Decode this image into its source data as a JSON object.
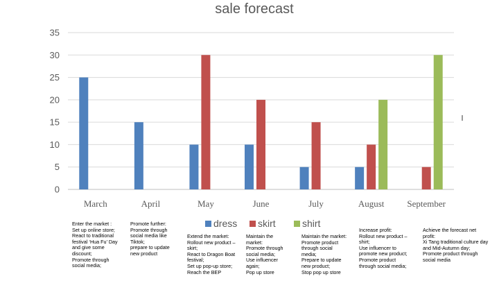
{
  "chart_data": {
    "type": "bar",
    "title": "sale forecast",
    "categories": [
      "March",
      "April",
      "May",
      "June",
      "July",
      "August",
      "September"
    ],
    "series": [
      {
        "name": "dress",
        "color": "#4f81bd",
        "values": [
          25,
          15,
          10,
          10,
          5,
          5,
          0
        ]
      },
      {
        "name": "skirt",
        "color": "#c0504d",
        "values": [
          0,
          0,
          30,
          20,
          15,
          10,
          5
        ]
      },
      {
        "name": "shirt",
        "color": "#9bbb59",
        "values": [
          0,
          0,
          0,
          0,
          0,
          20,
          30
        ]
      }
    ],
    "yticks": [
      "0",
      "5",
      "10",
      "15",
      "20",
      "25",
      "30",
      "35"
    ],
    "ylim": [
      0,
      35
    ],
    "grid": true,
    "legend": "bottom-center"
  },
  "notes": [
    "Enter the market :\nSet up online store;\nReact to traditional festival ‘Hua Fu’ Day and give some discount;\nPromote through social media;",
    "Promote further:\nPromote through social media like Tiktok;\nprepare to update new product",
    "Extend the market:\nRollout new product – skirt;\nReact to Dragon Boat festival;\nSet up pop-up store;\nReach the BEP",
    "Maintain the market:\nPromote through social media;\nUse influencer again;\nPop up store",
    "Maintain the market:\nPromote product through social media;\nPrepare to update new product;\nStop pop up store",
    "Increase profit:\nRollout new product – shirt;\nUse influencer to promote new product;\nPromote product through social media;",
    "Achieve the forecast net profit:\nXi Tang traditional culture day and Mid-Autumn day;\nPromote product through social media"
  ]
}
